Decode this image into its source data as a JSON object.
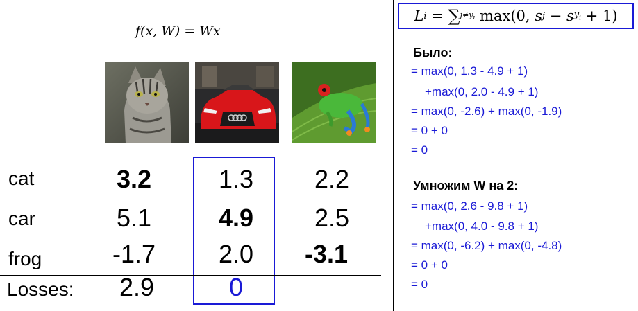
{
  "formula_top": "f(x, W) = Wx",
  "loss_formula": "L_i = ∑_{j≠y_i} max(0, s_j − s_{y_i} + 1)",
  "images": [
    "cat-photo",
    "car-photo",
    "frog-photo"
  ],
  "rows": [
    {
      "label": "cat",
      "scores": [
        "3.2",
        "1.3",
        "2.2"
      ]
    },
    {
      "label": "car",
      "scores": [
        "5.1",
        "4.9",
        "2.5"
      ]
    },
    {
      "label": "frog",
      "scores": [
        "-1.7",
        "2.0",
        "-3.1"
      ]
    }
  ],
  "losses": {
    "label": "Losses:",
    "values": [
      "2.9",
      "0"
    ]
  },
  "before": {
    "heading": "Было:",
    "steps": [
      "= max(0, 1.3 - 4.9 + 1)",
      "+max(0, 2.0 - 4.9 + 1)",
      "= max(0, -2.6) + max(0, -1.9)",
      "= 0 + 0",
      "= 0"
    ]
  },
  "after": {
    "heading": "Умножим W на 2:",
    "steps": [
      "= max(0, 2.6 - 9.8 + 1)",
      "+max(0, 4.0 - 9.8 + 1)",
      "= max(0, -6.2) + max(0, -4.8)",
      "= 0 + 0",
      "= 0"
    ]
  },
  "colors": {
    "accent": "#1a1ad6"
  }
}
